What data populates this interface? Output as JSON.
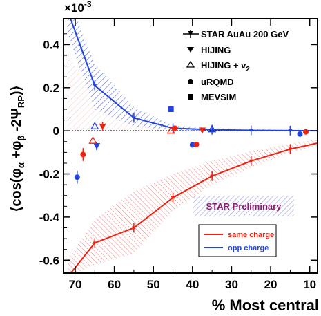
{
  "chart_data": {
    "type": "line",
    "title": "",
    "exponent_label": "×10",
    "exponent_power": "-3",
    "xlabel": "% Most central",
    "ylabel": {
      "open": "⟨cos(φ",
      "alpha": "α",
      "mid": " +φ",
      "beta": "β",
      "mid2": " -2Ψ",
      "rp": "RP",
      "close": ")⟩"
    },
    "xlim": [
      73,
      8
    ],
    "ylim": [
      -0.00066,
      0.00052
    ],
    "x_ticks": [
      70,
      60,
      50,
      40,
      30,
      20,
      10
    ],
    "y_ticks": [
      {
        "value": 0.0004,
        "label": "0.4"
      },
      {
        "value": 0.0002,
        "label": "0.2"
      },
      {
        "value": 0,
        "label": "0"
      },
      {
        "value": -0.0002,
        "label": "-0.2"
      },
      {
        "value": -0.0004,
        "label": "-0.4"
      },
      {
        "value": -0.0006,
        "label": "-0.6"
      }
    ],
    "legend": {
      "placement": "top-right",
      "entries": [
        {
          "label": "STAR AuAu 200 GeV",
          "marker": "star-line"
        },
        {
          "label": "HIJING",
          "marker": "down-triangle"
        },
        {
          "label": "HIJING + v",
          "subscript": "2",
          "marker": "open-triangle"
        },
        {
          "label": "uRQMD",
          "marker": "circle"
        },
        {
          "label": "MEVSIM",
          "marker": "square"
        }
      ]
    },
    "charge_legend": {
      "placement": "bottom-right",
      "entries": [
        {
          "label": "same charge",
          "color": "#ee2211"
        },
        {
          "label": "opp charge",
          "color": "#2244dd"
        }
      ]
    },
    "annotation": "STAR Preliminary",
    "colors": {
      "same": "#ee2211",
      "opp": "#2244dd"
    },
    "series": [
      {
        "name": "STAR AuAu 200 GeV opp charge",
        "color": "#2244dd",
        "x": [
          72,
          65,
          55,
          45,
          35,
          25,
          15,
          5
        ],
        "y": [
          0.00056,
          0.00021,
          6e-05,
          1.2e-05,
          5e-06,
          2e-06,
          1e-06,
          0
        ],
        "band_low": [
          0.00045,
          0.0001,
          2e-05,
          2e-06,
          -3e-06,
          -3e-06,
          -3e-06,
          -3e-06
        ],
        "band_high": [
          0.00063,
          0.00031,
          0.00011,
          2.5e-05,
          1.2e-05,
          7e-06,
          5e-06,
          3e-06
        ]
      },
      {
        "name": "STAR AuAu 200 GeV same charge",
        "color": "#ee2211",
        "x": [
          72,
          65,
          55,
          45,
          35,
          25,
          15,
          5
        ],
        "y": [
          -0.00068,
          -0.00052,
          -0.00045,
          -0.00031,
          -0.00021,
          -0.00014,
          -8.5e-05,
          -4.5e-05
        ],
        "band_low": [
          -0.00068,
          -0.00062,
          -0.00057,
          -0.00037,
          -0.00025,
          -0.00017,
          -0.0001,
          -6e-05
        ],
        "band_high": [
          -0.0006,
          -0.00041,
          -0.00028,
          -0.0002,
          -0.00014,
          -9.5e-05,
          -6e-05,
          -3e-05
        ]
      },
      {
        "name": "opp charge red shading",
        "color": "#ee2211",
        "x": [
          72,
          65,
          55,
          45,
          40
        ],
        "band_low": [
          0,
          0,
          0,
          0,
          0
        ],
        "band_high": [
          0.00035,
          0.00016,
          5e-05,
          1e-05,
          3e-06
        ]
      }
    ],
    "model_points": [
      {
        "model": "uRQMD",
        "marker": "circle",
        "charge": "opp",
        "x": 69.5,
        "y": -0.000215,
        "err": 3e-05
      },
      {
        "model": "uRQMD",
        "marker": "circle",
        "charge": "same",
        "x": 68,
        "y": -0.00011,
        "err": 3e-05
      },
      {
        "model": "HIJING",
        "marker": "down-triangle",
        "charge": "opp",
        "x": 64.5,
        "y": -7e-05,
        "err": 2e-05
      },
      {
        "model": "HIJING",
        "marker": "down-triangle",
        "charge": "same",
        "x": 63,
        "y": 2e-05,
        "err": 2e-05
      },
      {
        "model": "HIJING + v2",
        "marker": "open-triangle",
        "charge": "opp",
        "x": 65,
        "y": 2.2e-05,
        "err": 0
      },
      {
        "model": "HIJING + v2",
        "marker": "open-triangle",
        "charge": "same",
        "x": 65.5,
        "y": -4.5e-05,
        "err": 0
      },
      {
        "model": "MEVSIM",
        "marker": "square",
        "charge": "opp",
        "x": 45.5,
        "y": 0.0001,
        "err": 0
      },
      {
        "model": "HIJING + v2",
        "marker": "open-triangle",
        "charge": "same",
        "x": 45.5,
        "y": 2e-06,
        "err": 0
      },
      {
        "model": "uRQMD",
        "marker": "circle",
        "charge": "same",
        "x": 44.5,
        "y": 1.2e-05,
        "err": 0
      },
      {
        "model": "uRQMD",
        "marker": "circle",
        "charge": "opp",
        "x": 40,
        "y": -6.5e-05,
        "err": 0
      },
      {
        "model": "uRQMD",
        "marker": "circle",
        "charge": "same",
        "x": 39,
        "y": -6.3e-05,
        "err": 0
      },
      {
        "model": "HIJING",
        "marker": "down-triangle",
        "charge": "same",
        "x": 37.5,
        "y": 2e-06,
        "err": 0
      },
      {
        "model": "HIJING + v2",
        "marker": "open-triangle",
        "charge": "opp",
        "x": 35,
        "y": 8e-06,
        "err": 0
      },
      {
        "model": "uRQMD",
        "marker": "circle",
        "charge": "opp",
        "x": 12.5,
        "y": -1.5e-05,
        "err": 0
      },
      {
        "model": "uRQMD",
        "marker": "circle",
        "charge": "same",
        "x": 11,
        "y": -5e-06,
        "err": 0
      }
    ]
  }
}
